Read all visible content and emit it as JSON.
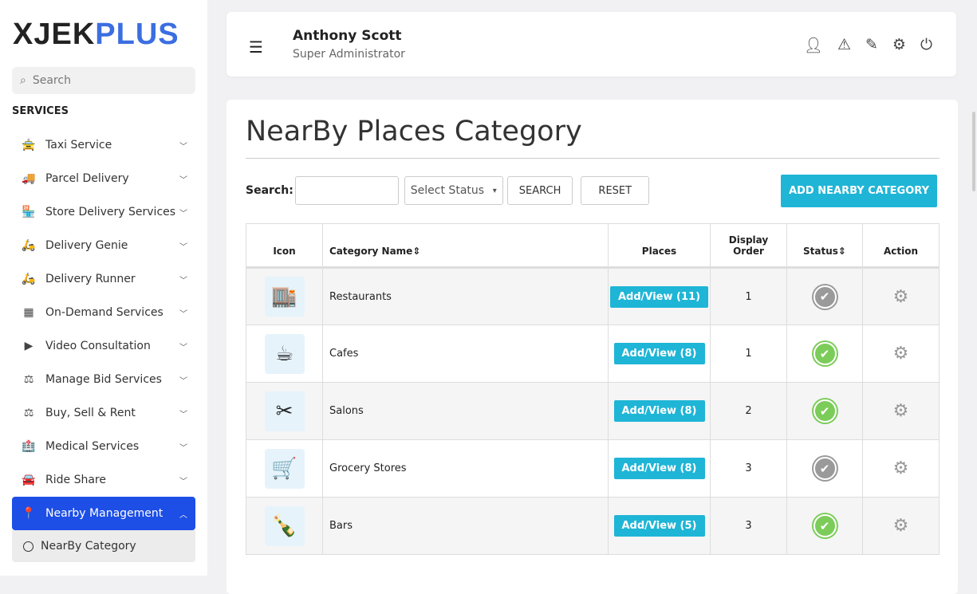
{
  "brand": {
    "part1": "XJEK",
    "part2": "PLUS",
    "accent": "#3b6ee0"
  },
  "sidebar": {
    "search_placeholder": "Search",
    "section": "SERVICES",
    "items": [
      {
        "label": "Taxi Service",
        "icon": "🚖",
        "name": "taxi"
      },
      {
        "label": "Parcel Delivery",
        "icon": "🚚",
        "name": "truck"
      },
      {
        "label": "Store Delivery Services",
        "icon": "🏪",
        "name": "store"
      },
      {
        "label": "Delivery Genie",
        "icon": "🛵",
        "name": "scooter"
      },
      {
        "label": "Delivery Runner",
        "icon": "🛵",
        "name": "scooter"
      },
      {
        "label": "On-Demand Services",
        "icon": "▦",
        "name": "grid"
      },
      {
        "label": "Video Consultation",
        "icon": "▶",
        "name": "video"
      },
      {
        "label": "Manage Bid Services",
        "icon": "⚖",
        "name": "gavel"
      },
      {
        "label": "Buy, Sell & Rent",
        "icon": "⚖",
        "name": "gavel"
      },
      {
        "label": "Medical Services",
        "icon": "🏥",
        "name": "hospital"
      },
      {
        "label": "Ride Share",
        "icon": "🚘",
        "name": "car"
      },
      {
        "label": "Nearby Management",
        "icon": "📍",
        "name": "map-pin",
        "active": true
      }
    ],
    "subitem": "NearBy Category"
  },
  "header": {
    "name": "Anthony Scott",
    "role": "Super Administrator"
  },
  "page": {
    "title": "NearBy Places Category",
    "search_label": "Search:",
    "search_value": "",
    "status_placeholder": "Select Status",
    "search_btn": "SEARCH",
    "reset_btn": "RESET",
    "add_btn": "ADD NEARBY CATEGORY"
  },
  "table": {
    "headers": {
      "icon": "Icon",
      "name": "Category Name",
      "places": "Places",
      "order_1": "Display",
      "order_2": "Order",
      "status": "Status",
      "action": "Action"
    },
    "rows": [
      {
        "icon": "🏬",
        "name": "Restaurants",
        "places": "Add/View (11)",
        "order": "1",
        "status": "inactive"
      },
      {
        "icon": "☕",
        "name": "Cafes",
        "places": "Add/View (8)",
        "order": "1",
        "status": "active"
      },
      {
        "icon": "✂",
        "name": "Salons",
        "places": "Add/View (8)",
        "order": "2",
        "status": "active"
      },
      {
        "icon": "🛒",
        "name": "Grocery Stores",
        "places": "Add/View (8)",
        "order": "3",
        "status": "inactive"
      },
      {
        "icon": "🍾",
        "name": "Bars",
        "places": "Add/View (5)",
        "order": "3",
        "status": "active"
      }
    ]
  },
  "colors": {
    "active_status": "#7ccc5a",
    "inactive_status": "#9a9a9a",
    "button": "#1fb5d6",
    "nav_active": "#1d4ee6"
  }
}
